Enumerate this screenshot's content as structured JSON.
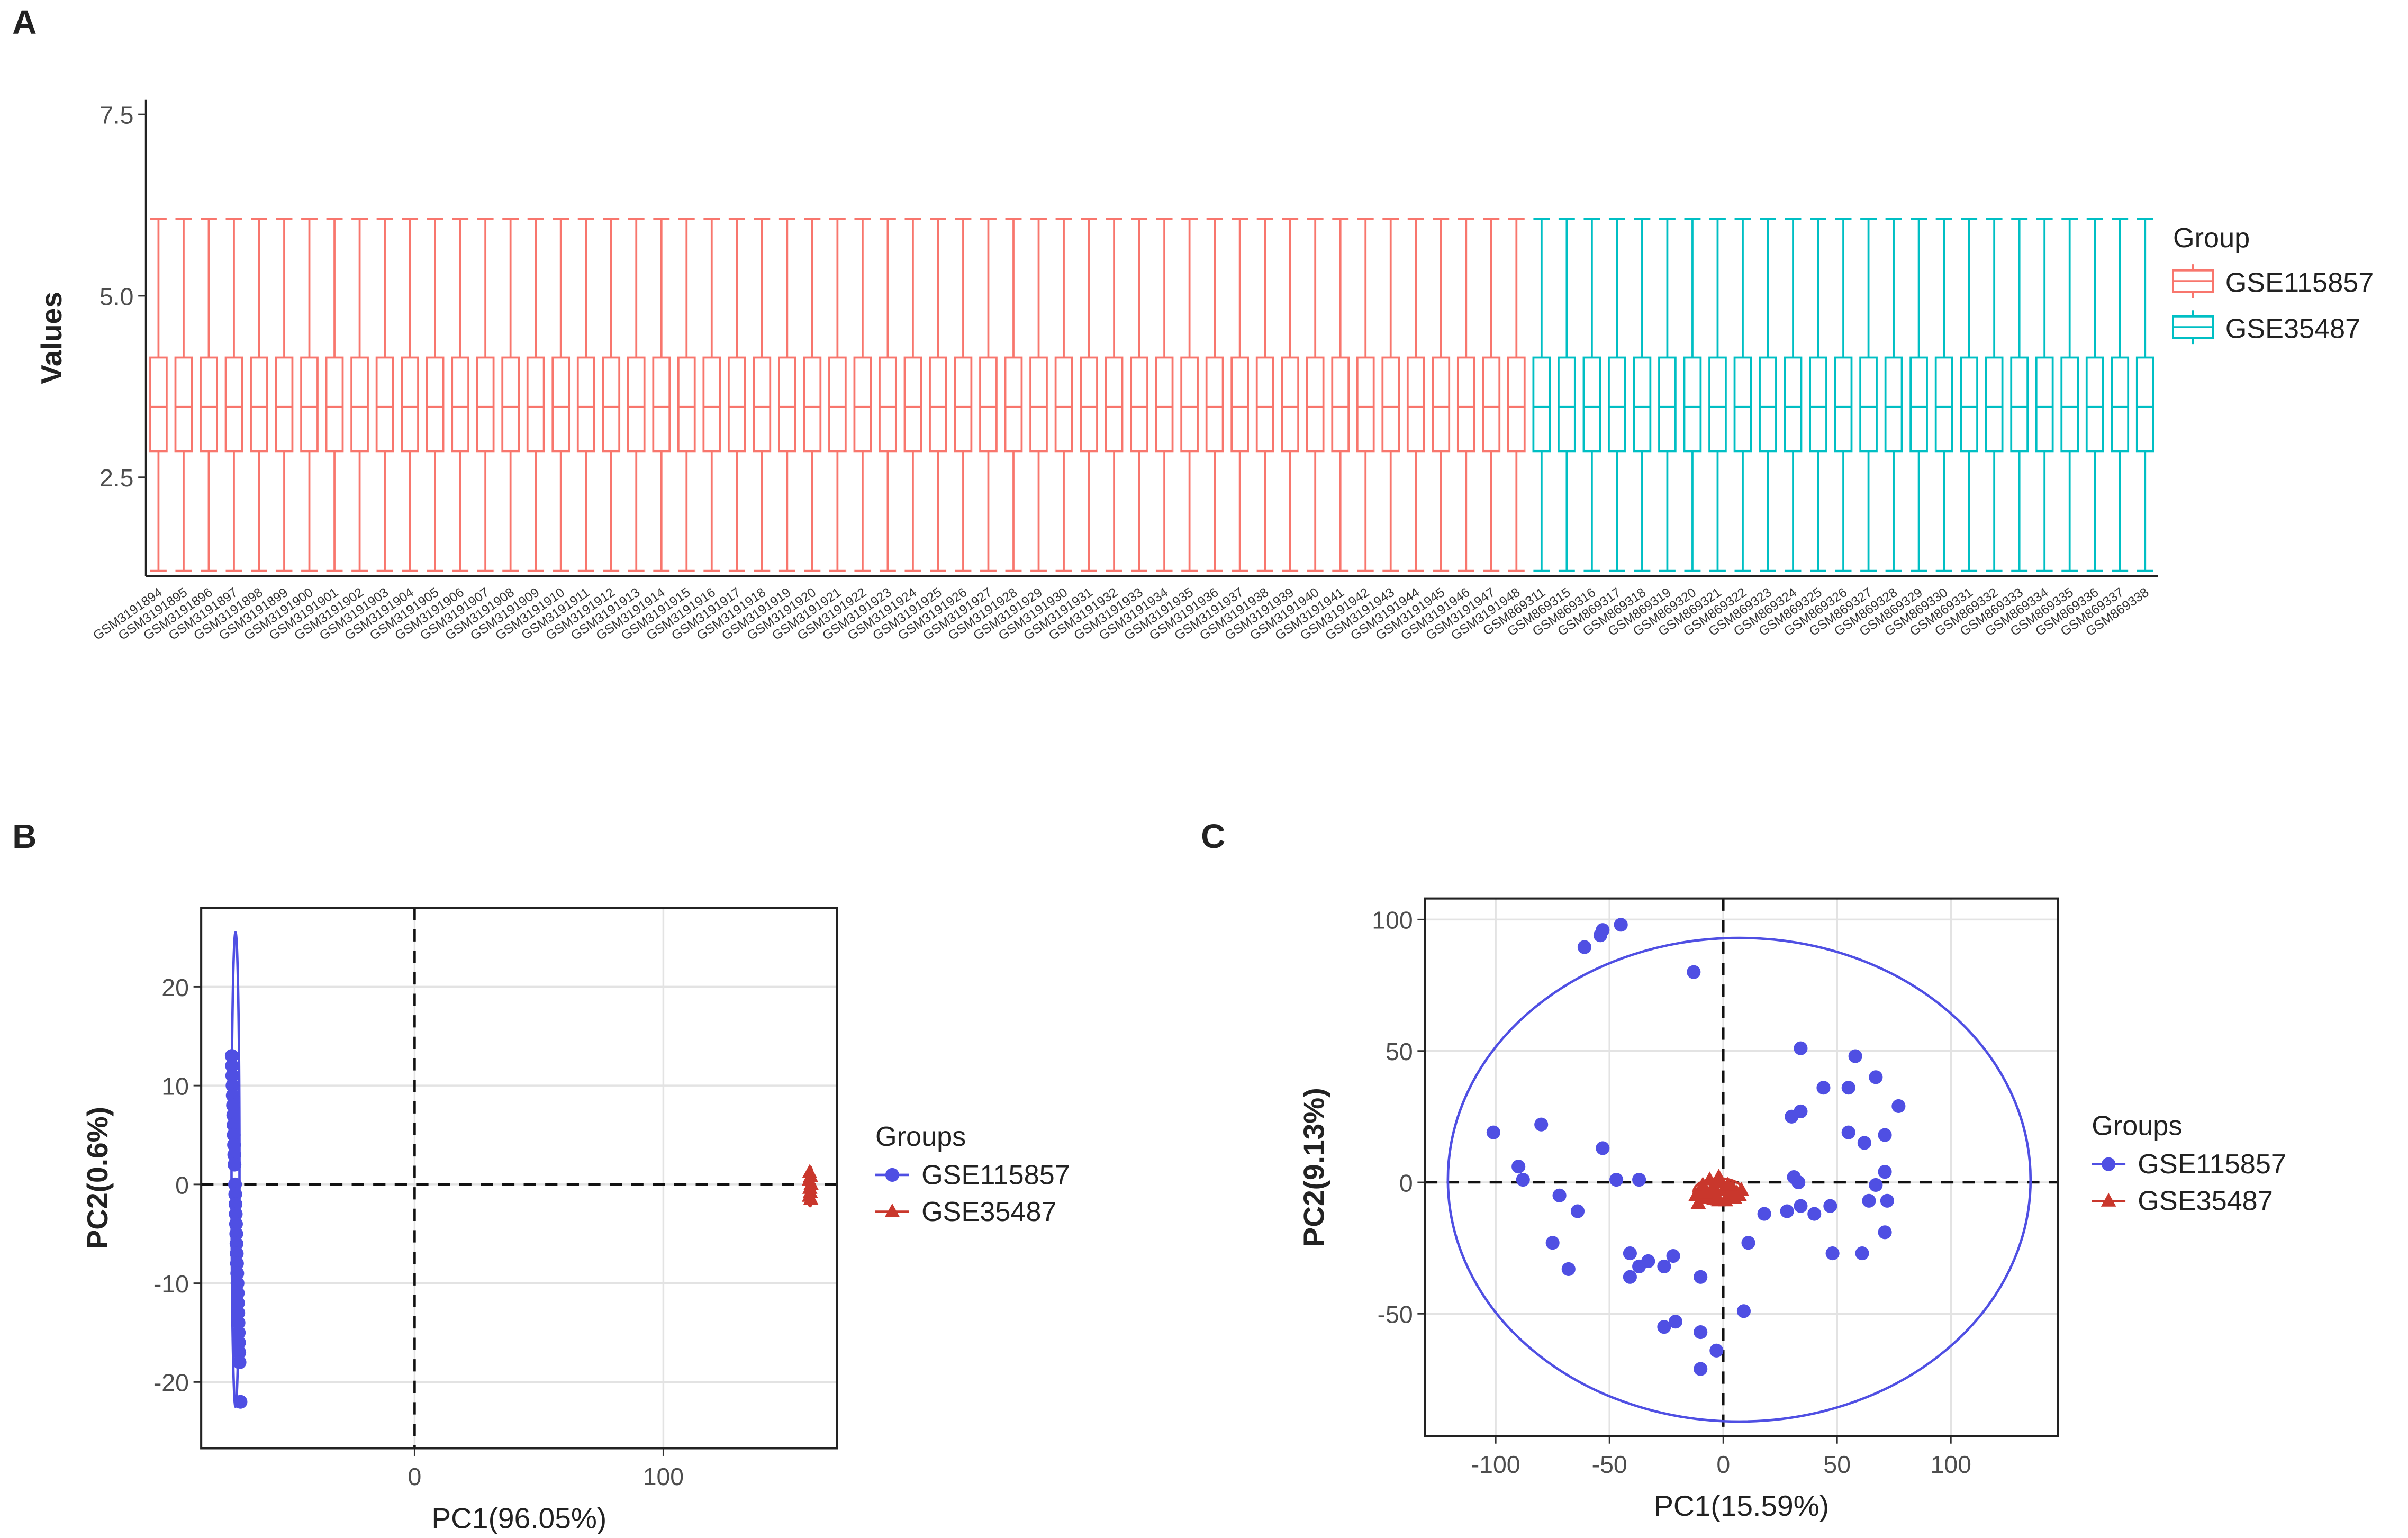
{
  "chart_data": [
    {
      "type": "box",
      "label": "A",
      "ylabel": "Values",
      "legend_title": "Group",
      "ylim": [
        1.14,
        7.7
      ],
      "yticks": [
        2.5,
        {
          "value": 5,
          "label": "5.0"
        },
        7.5
      ],
      "series": [
        {
          "name": "GSE115857",
          "color": "#f8766d",
          "categories": [
            "GSM3191894",
            "GSM3191895",
            "GSM3191896",
            "GSM3191897",
            "GSM3191898",
            "GSM3191899",
            "GSM3191900",
            "GSM3191901",
            "GSM3191902",
            "GSM3191903",
            "GSM3191904",
            "GSM3191905",
            "GSM3191906",
            "GSM3191907",
            "GSM3191908",
            "GSM3191909",
            "GSM3191910",
            "GSM3191911",
            "GSM3191912",
            "GSM3191913",
            "GSM3191914",
            "GSM3191915",
            "GSM3191916",
            "GSM3191917",
            "GSM3191918",
            "GSM3191919",
            "GSM3191920",
            "GSM3191921",
            "GSM3191922",
            "GSM3191923",
            "GSM3191924",
            "GSM3191925",
            "GSM3191926",
            "GSM3191927",
            "GSM3191928",
            "GSM3191929",
            "GSM3191930",
            "GSM3191931",
            "GSM3191932",
            "GSM3191933",
            "GSM3191934",
            "GSM3191935",
            "GSM3191936",
            "GSM3191937",
            "GSM3191938",
            "GSM3191939",
            "GSM3191940",
            "GSM3191941",
            "GSM3191942",
            "GSM3191943",
            "GSM3191944",
            "GSM3191945",
            "GSM3191946",
            "GSM3191947",
            "GSM3191948"
          ],
          "min": [
            1.21,
            1.21,
            1.21,
            1.21,
            1.21,
            1.21,
            1.21,
            1.21,
            1.21,
            1.21,
            1.21,
            1.21,
            1.21,
            1.21,
            1.21,
            1.21,
            1.21,
            1.21,
            1.21,
            1.21,
            1.21,
            1.21,
            1.21,
            1.21,
            1.21,
            1.21,
            1.21,
            1.21,
            1.21,
            1.21,
            1.21,
            1.21,
            1.21,
            1.21,
            1.21,
            1.21,
            1.21,
            1.21,
            1.21,
            1.21,
            1.21,
            1.21,
            1.21,
            1.21,
            1.21,
            1.21,
            1.21,
            1.21,
            1.21,
            1.21,
            1.21,
            1.21,
            1.21,
            1.21,
            1.21
          ],
          "q1": [
            2.86,
            2.86,
            2.86,
            2.86,
            2.86,
            2.86,
            2.86,
            2.86,
            2.86,
            2.86,
            2.86,
            2.86,
            2.86,
            2.86,
            2.86,
            2.86,
            2.86,
            2.86,
            2.86,
            2.86,
            2.86,
            2.86,
            2.86,
            2.86,
            2.86,
            2.86,
            2.86,
            2.86,
            2.86,
            2.86,
            2.86,
            2.86,
            2.86,
            2.86,
            2.86,
            2.86,
            2.86,
            2.86,
            2.86,
            2.86,
            2.86,
            2.86,
            2.86,
            2.86,
            2.86,
            2.86,
            2.86,
            2.86,
            2.86,
            2.86,
            2.86,
            2.86,
            2.86,
            2.86,
            2.86
          ],
          "median": [
            3.47,
            3.47,
            3.47,
            3.47,
            3.47,
            3.47,
            3.47,
            3.47,
            3.47,
            3.47,
            3.47,
            3.47,
            3.47,
            3.47,
            3.47,
            3.47,
            3.47,
            3.47,
            3.47,
            3.47,
            3.47,
            3.47,
            3.47,
            3.47,
            3.47,
            3.47,
            3.47,
            3.47,
            3.47,
            3.47,
            3.47,
            3.47,
            3.47,
            3.47,
            3.47,
            3.47,
            3.47,
            3.47,
            3.47,
            3.47,
            3.47,
            3.47,
            3.47,
            3.47,
            3.47,
            3.47,
            3.47,
            3.47,
            3.47,
            3.47,
            3.47,
            3.47,
            3.47,
            3.47,
            3.47
          ],
          "q3": [
            4.15,
            4.15,
            4.15,
            4.15,
            4.15,
            4.15,
            4.15,
            4.15,
            4.15,
            4.15,
            4.15,
            4.15,
            4.15,
            4.15,
            4.15,
            4.15,
            4.15,
            4.15,
            4.15,
            4.15,
            4.15,
            4.15,
            4.15,
            4.15,
            4.15,
            4.15,
            4.15,
            4.15,
            4.15,
            4.15,
            4.15,
            4.15,
            4.15,
            4.15,
            4.15,
            4.15,
            4.15,
            4.15,
            4.15,
            4.15,
            4.15,
            4.15,
            4.15,
            4.15,
            4.15,
            4.15,
            4.15,
            4.15,
            4.15,
            4.15,
            4.15,
            4.15,
            4.15,
            4.15,
            4.15
          ],
          "max": [
            6.06,
            6.06,
            6.06,
            6.06,
            6.06,
            6.06,
            6.06,
            6.06,
            6.06,
            6.06,
            6.06,
            6.06,
            6.06,
            6.06,
            6.06,
            6.06,
            6.06,
            6.06,
            6.06,
            6.06,
            6.06,
            6.06,
            6.06,
            6.06,
            6.06,
            6.06,
            6.06,
            6.06,
            6.06,
            6.06,
            6.06,
            6.06,
            6.06,
            6.06,
            6.06,
            6.06,
            6.06,
            6.06,
            6.06,
            6.06,
            6.06,
            6.06,
            6.06,
            6.06,
            6.06,
            6.06,
            6.06,
            6.06,
            6.06,
            6.06,
            6.06,
            6.06,
            6.06,
            6.06,
            6.06
          ]
        },
        {
          "name": "GSE35487",
          "color": "#00bfc4",
          "categories": [
            "GSM869311",
            "GSM869315",
            "GSM869316",
            "GSM869317",
            "GSM869318",
            "GSM869319",
            "GSM869320",
            "GSM869321",
            "GSM869322",
            "GSM869323",
            "GSM869324",
            "GSM869325",
            "GSM869326",
            "GSM869327",
            "GSM869328",
            "GSM869329",
            "GSM869330",
            "GSM869331",
            "GSM869332",
            "GSM869333",
            "GSM869334",
            "GSM869335",
            "GSM869336",
            "GSM869337",
            "GSM869338"
          ],
          "min": [
            1.21,
            1.21,
            1.21,
            1.21,
            1.21,
            1.21,
            1.21,
            1.21,
            1.21,
            1.21,
            1.21,
            1.21,
            1.21,
            1.21,
            1.21,
            1.21,
            1.21,
            1.21,
            1.21,
            1.21,
            1.21,
            1.21,
            1.21,
            1.21,
            1.21
          ],
          "q1": [
            2.86,
            2.86,
            2.86,
            2.86,
            2.86,
            2.86,
            2.86,
            2.86,
            2.86,
            2.86,
            2.86,
            2.86,
            2.86,
            2.86,
            2.86,
            2.86,
            2.86,
            2.86,
            2.86,
            2.86,
            2.86,
            2.86,
            2.86,
            2.86,
            2.86
          ],
          "median": [
            3.47,
            3.47,
            3.47,
            3.47,
            3.47,
            3.47,
            3.47,
            3.47,
            3.47,
            3.47,
            3.47,
            3.47,
            3.47,
            3.47,
            3.47,
            3.47,
            3.47,
            3.47,
            3.47,
            3.47,
            3.47,
            3.47,
            3.47,
            3.47,
            3.47
          ],
          "q3": [
            4.15,
            4.15,
            4.15,
            4.15,
            4.15,
            4.15,
            4.15,
            4.15,
            4.15,
            4.15,
            4.15,
            4.15,
            4.15,
            4.15,
            4.15,
            4.15,
            4.15,
            4.15,
            4.15,
            4.15,
            4.15,
            4.15,
            4.15,
            4.15,
            4.15
          ],
          "max": [
            6.06,
            6.06,
            6.06,
            6.06,
            6.06,
            6.06,
            6.06,
            6.06,
            6.06,
            6.06,
            6.06,
            6.06,
            6.06,
            6.06,
            6.06,
            6.06,
            6.06,
            6.06,
            6.06,
            6.06,
            6.06,
            6.06,
            6.06,
            6.06,
            6.06
          ]
        }
      ]
    },
    {
      "type": "scatter",
      "label": "B",
      "xlabel": "PC1(96.05%)",
      "ylabel": "PC2(0.6%)",
      "legend_title": "Groups",
      "xlim": [
        -85.8,
        169.8
      ],
      "xticks": [
        0,
        100
      ],
      "ylim": [
        -26.7,
        28.0
      ],
      "yticks": [
        -20,
        -10,
        0,
        10,
        20
      ],
      "grid": true,
      "vline": 0,
      "hline": 0,
      "series": [
        {
          "name": "GSE115857",
          "color": "#4f4fe3",
          "marker": "circle",
          "x": [
            -73.5,
            -73.4,
            -73.3,
            -73.2,
            -73.1,
            -73.0,
            -72.9,
            -72.8,
            -72.7,
            -72.6,
            -72.5,
            -72.4,
            -72.2,
            -72.1,
            -72.0,
            -71.9,
            -71.8,
            -71.7,
            -71.6,
            -71.5,
            -71.4,
            -71.3,
            -71.2,
            -71.1,
            -71.0,
            -70.9,
            -70.8,
            -70.7,
            -70.6,
            -70.5,
            -70.4,
            -70.0
          ],
          "y": [
            13,
            12,
            11,
            10,
            9,
            8,
            7,
            6,
            5,
            4,
            3,
            2,
            0,
            -1,
            -2,
            -3,
            -4,
            -5,
            -6,
            -7,
            -8,
            -9,
            -10,
            -11,
            -12,
            -13,
            -14,
            -15,
            -16,
            -17,
            -18,
            -22
          ],
          "ellipse": {
            "cx": -72,
            "cy": 1.5,
            "rx": 1.6,
            "ry": 24
          }
        },
        {
          "name": "GSE35487",
          "color": "#c9372c",
          "marker": "triangle",
          "x": [
            158.8,
            159.2,
            158.6,
            159.4,
            158.9,
            159.1,
            158.7,
            159.3
          ],
          "y": [
            1.2,
            0.8,
            0.4,
            0,
            -0.4,
            -0.8,
            -1.2,
            -1.5
          ],
          "ellipse": {
            "cx": 159,
            "cy": -0.2,
            "rx": 1.2,
            "ry": 2
          }
        }
      ]
    },
    {
      "type": "scatter",
      "label": "C",
      "xlabel": "PC1(15.59%)",
      "ylabel": "PC2(9.13%)",
      "legend_title": "Groups",
      "xlim": [
        -131,
        147
      ],
      "xticks": [
        -100,
        -50,
        0,
        50,
        100
      ],
      "ylim": [
        -96.5,
        108
      ],
      "yticks": [
        -50,
        0,
        50,
        100
      ],
      "grid": true,
      "vline": 0,
      "hline": 0,
      "series": [
        {
          "name": "GSE115857",
          "color": "#4f4fe3",
          "marker": "circle",
          "x": [
            -61,
            -54,
            -53,
            -45,
            -13,
            -101,
            -90,
            -88,
            -80,
            -72,
            -64,
            -75,
            -68,
            -53,
            -47,
            -37,
            -41,
            -41,
            -33,
            -37,
            -26,
            -22,
            -26,
            -21,
            -10,
            -10,
            -10,
            -3,
            9,
            11,
            18,
            28,
            31,
            33,
            34,
            30,
            34,
            34,
            44,
            55,
            58,
            67,
            77,
            55,
            62,
            71,
            71,
            67,
            72,
            64,
            71,
            48,
            61,
            47,
            40
          ],
          "y": [
            89.5,
            94,
            96,
            98,
            80,
            19,
            6,
            1,
            22,
            -5,
            -11,
            -23,
            -33,
            13,
            1,
            1,
            -27,
            -36,
            -30,
            -32,
            -32,
            -28,
            -55,
            -53,
            -36,
            -57,
            -71,
            -64,
            -49,
            -23,
            -12,
            -11,
            2,
            0,
            -9,
            25,
            27,
            51,
            36,
            36,
            48,
            40,
            29,
            19,
            15,
            18,
            4,
            -1,
            -7,
            -7,
            -19,
            -27,
            -27,
            -9,
            -12
          ],
          "ellipse": {
            "cx": 7,
            "cy": 1,
            "rx": 128,
            "ry": 92
          }
        },
        {
          "name": "GSE35487",
          "color": "#c9372c",
          "marker": "triangle",
          "x": [
            -12,
            -10,
            -8,
            -6,
            -4,
            -2,
            0,
            2,
            4,
            6,
            8,
            -11,
            -9,
            -7,
            -5,
            -3,
            -1,
            1,
            3,
            5,
            7,
            -6,
            -2,
            2,
            -8
          ],
          "y": [
            -5,
            -3,
            -6,
            -4,
            -2,
            -7,
            -3,
            -5,
            -2,
            -4,
            -3,
            -8,
            -1,
            -6,
            -3,
            -5,
            0,
            -7,
            -4,
            -6,
            -5,
            1,
            2,
            -1,
            -4
          ],
          "ellipse": {
            "cx": -2,
            "cy": -3.5,
            "rx": 11,
            "ry": 5
          }
        }
      ]
    }
  ]
}
